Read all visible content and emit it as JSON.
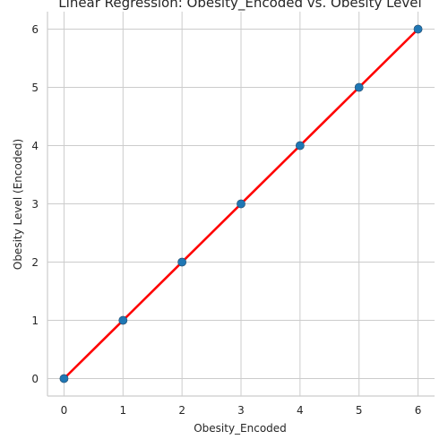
{
  "chart_data": {
    "type": "scatter",
    "title": "Linear Regression: Obesity_Encoded vs. Obesity Level",
    "xlabel": "Obesity_Encoded",
    "ylabel": "Obesity Level (Encoded)",
    "xlim": [
      -0.28,
      6.28
    ],
    "ylim": [
      -0.3,
      6.3
    ],
    "x_ticks": [
      0,
      1,
      2,
      3,
      4,
      5,
      6
    ],
    "y_ticks": [
      0,
      1,
      2,
      3,
      4,
      5,
      6
    ],
    "grid": true,
    "series": [
      {
        "kind": "points",
        "x": [
          0,
          1,
          2,
          3,
          4,
          5,
          6
        ],
        "y": [
          0,
          1,
          2,
          3,
          4,
          5,
          6
        ],
        "color": "#1f77b4"
      },
      {
        "kind": "regression-line",
        "x": [
          0,
          6
        ],
        "y": [
          0,
          6
        ],
        "color": "#ff0000"
      }
    ]
  }
}
